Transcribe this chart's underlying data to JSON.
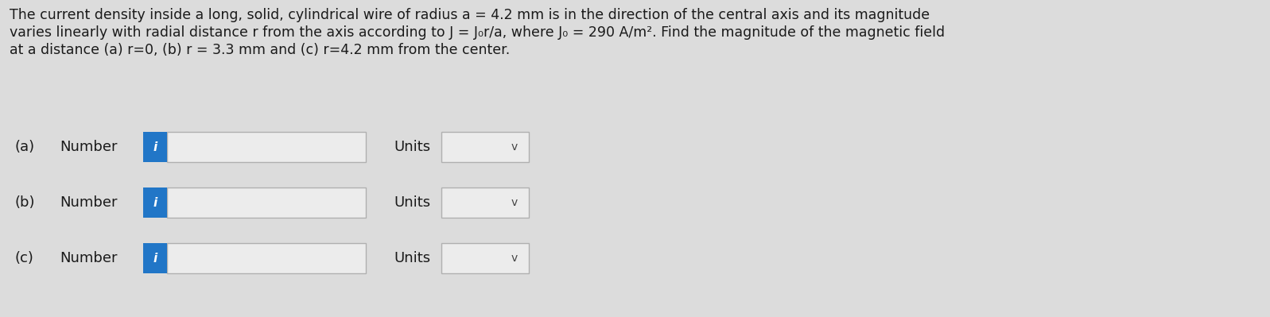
{
  "background_color": "#dcdcdc",
  "title_text_line1": "The current density inside a long, solid, cylindrical wire of radius a = 4.2 mm is in the direction of the central axis and its magnitude",
  "title_text_line2": "varies linearly with radial distance r from the axis according to J = J₀r/a, where J₀ = 290 A/m². Find the magnitude of the magnetic field",
  "title_text_line3": "at a distance (a) r=0, (b) r = 3.3 mm and (c) r=4.2 mm from the center.",
  "title_fontsize": 12.5,
  "rows": [
    {
      "label": "(a)",
      "text": "Number",
      "units_text": "Units"
    },
    {
      "label": "(b)",
      "text": "Number",
      "units_text": "Units"
    },
    {
      "label": "(c)",
      "text": "Number",
      "units_text": "Units"
    }
  ],
  "label_fontsize": 13,
  "box_input_color": "#ececec",
  "box_input_border": "#b0b0b0",
  "box_units_color": "#ececec",
  "box_units_border": "#b0b0b0",
  "info_button_color": "#2176c7",
  "info_button_text_color": "#ffffff",
  "text_color": "#1a1a1a",
  "chevron": "v"
}
